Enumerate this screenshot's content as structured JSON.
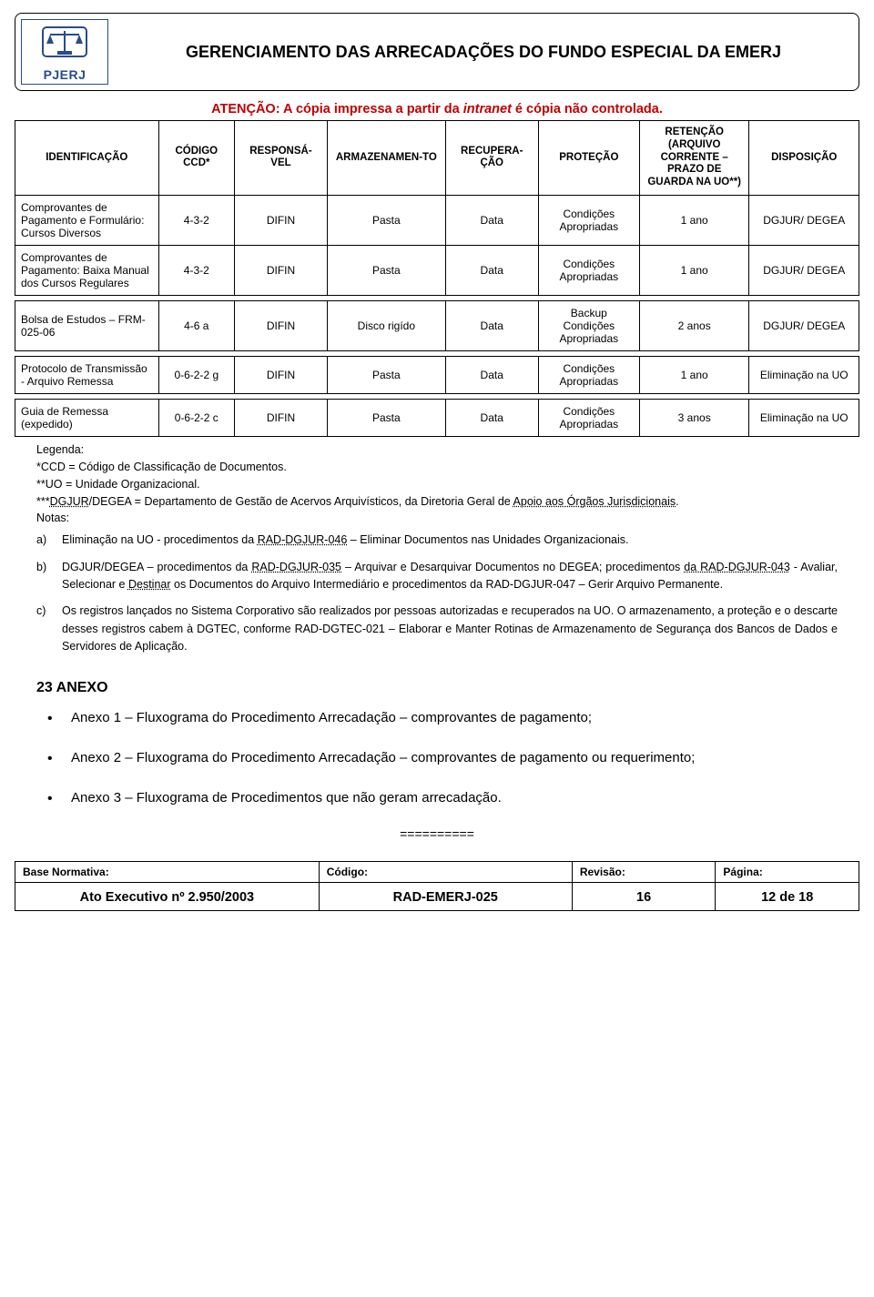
{
  "header": {
    "logo_text": "PJERJ",
    "title": "GERENCIAMENTO DAS ARRECADAÇÕES DO FUNDO ESPECIAL DA EMERJ",
    "logo_colors": {
      "blue": "#2a4b8d",
      "white": "#ffffff"
    }
  },
  "warning": {
    "prefix": "ATENÇÃO: A cópia impressa a partir da ",
    "italic": "intranet",
    "suffix": " é cópia não controlada.",
    "color": "#c00000"
  },
  "table": {
    "columns": [
      "IDENTIFICAÇÃO",
      "CÓDIGO CCD*",
      "RESPONSÁ-VEL",
      "ARMAZENAMEN-TO",
      "RECUPERA-ÇÃO",
      "PROTEÇÃO",
      "RETENÇÃO (ARQUIVO CORRENTE – PRAZO DE GUARDA NA UO**)",
      "DISPOSIÇÃO"
    ],
    "col_widths_pct": [
      17,
      9,
      11,
      14,
      11,
      12,
      13,
      13
    ],
    "rows": [
      {
        "ident": "Comprovantes de Pagamento e Formulário: Cursos Diversos",
        "codigo": "4-3-2",
        "resp": "DIFIN",
        "arm": "Pasta",
        "rec": "Data",
        "prot": "Condições Apropriadas",
        "ret": "1 ano",
        "disp": "DGJUR/ DEGEA"
      },
      {
        "ident": "Comprovantes de Pagamento: Baixa Manual dos Cursos Regulares",
        "codigo": "4-3-2",
        "resp": "DIFIN",
        "arm": "Pasta",
        "rec": "Data",
        "prot": "Condições Apropriadas",
        "ret": "1 ano",
        "disp": "DGJUR/ DEGEA"
      },
      {
        "ident": "Bolsa de Estudos – FRM-025-06",
        "codigo": "4-6 a",
        "resp": "DIFIN",
        "arm": "Disco rigído",
        "rec": "Data",
        "prot": "Backup Condições Apropriadas",
        "ret": "2 anos",
        "disp": "DGJUR/ DEGEA"
      },
      {
        "ident": "Protocolo de Transmissão - Arquivo Remessa",
        "codigo": "0-6-2-2 g",
        "resp": "DIFIN",
        "arm": "Pasta",
        "rec": "Data",
        "prot": "Condições Apropriadas",
        "ret": "1 ano",
        "disp": "Eliminação na UO"
      },
      {
        "ident": "Guia de Remessa (expedido)",
        "codigo": "0-6-2-2 c",
        "resp": "DIFIN",
        "arm": "Pasta",
        "rec": "Data",
        "prot": "Condições Apropriadas",
        "ret": "3 anos",
        "disp": "Eliminação na UO"
      }
    ]
  },
  "legend": {
    "heading": "Legenda:",
    "l1": "*CCD = Código de Classificação de Documentos.",
    "l2": "**UO = Unidade Organizacional.",
    "l3_prefix": "***",
    "l3_dashed": "DGJUR",
    "l3_rest": "/DEGEA = Departamento de Gestão de Acervos Arquivísticos, da Diretoria Geral de ",
    "l3_dashed2": "Apoio aos Órgãos Jurisdicionais",
    "l3_end": "."
  },
  "notas": {
    "heading": "Notas:",
    "a": {
      "label": "a)",
      "t1": "Eliminação na UO - procedimentos da ",
      "d1": "RAD-DGJUR-046",
      "t2": " – Eliminar Documentos nas Unidades Organizacionais."
    },
    "b": {
      "label": "b)",
      "t1": "DGJUR/DEGEA – procedimentos da ",
      "d1": "RAD-DGJUR-035",
      "t2": " – Arquivar e Desarquivar Documentos no DEGEA; procedimentos ",
      "d2": "da RAD-DGJUR-043",
      "t3": " - Avaliar, Selecionar e ",
      "d3": "Destinar",
      "t4": " os   Documentos do Arquivo Intermediário e procedimentos da RAD-DGJUR-047 – Gerir Arquivo Permanente."
    },
    "c": {
      "label": "c)",
      "t1": "Os registros lançados no Sistema Corporativo são realizados por pessoas autorizadas e recuperados na UO. O armazenamento, a proteção e o descarte desses registros cabem à DGTEC, conforme RAD-DGTEC-021 – Elaborar e Manter Rotinas de Armazenamento de Segurança dos Bancos de Dados e Servidores de Aplicação."
    }
  },
  "anexo": {
    "heading": "23 ANEXO",
    "items": [
      "Anexo 1 – Fluxograma do Procedimento Arrecadação – comprovantes de pagamento;",
      "Anexo 2 – Fluxograma do Procedimento Arrecadação – comprovantes de pagamento ou requerimento;",
      "Anexo 3 – Fluxograma de Procedimentos que não geram arrecadação."
    ],
    "separator": "=========="
  },
  "footer": {
    "labels": [
      "Base Normativa:",
      "Código:",
      "Revisão:",
      "Página:"
    ],
    "values": [
      "Ato Executivo nº 2.950/2003",
      "RAD-EMERJ-025",
      "16",
      "12 de 18"
    ],
    "col_widths_pct": [
      36,
      30,
      17,
      17
    ]
  }
}
